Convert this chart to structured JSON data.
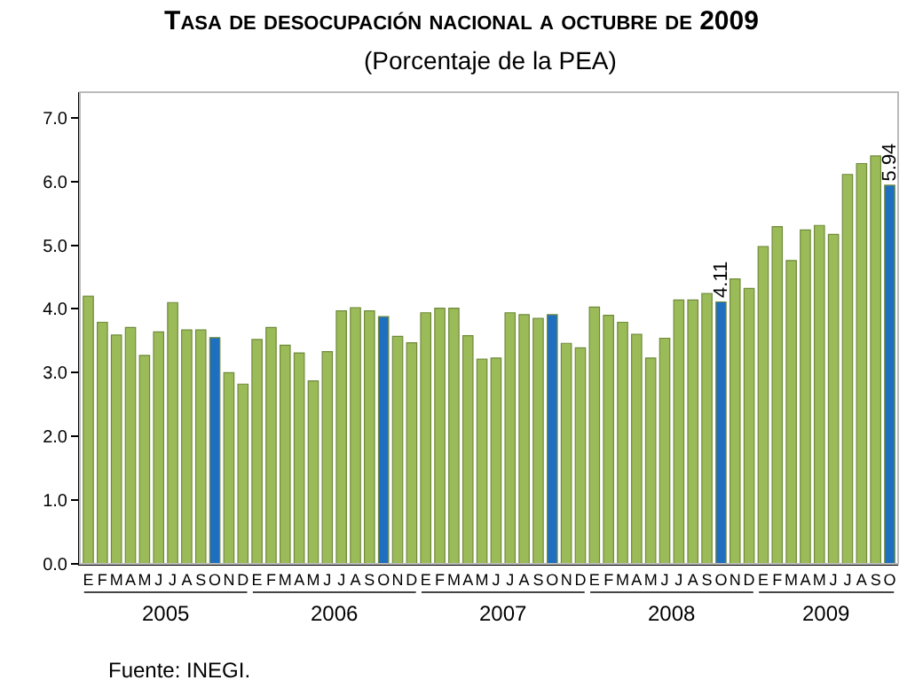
{
  "chart_data": {
    "type": "bar",
    "title": "Tasa de desocupación nacional a octubre de 2009",
    "subtitle": "(Porcentaje de la PEA)",
    "categories": [
      "E",
      "F",
      "M",
      "A",
      "M",
      "J",
      "J",
      "A",
      "S",
      "O",
      "N",
      "D",
      "E",
      "F",
      "M",
      "A",
      "M",
      "J",
      "J",
      "A",
      "S",
      "O",
      "N",
      "D",
      "E",
      "F",
      "M",
      "A",
      "M",
      "J",
      "J",
      "A",
      "S",
      "O",
      "N",
      "D",
      "E",
      "F",
      "M",
      "A",
      "M",
      "J",
      "J",
      "A",
      "S",
      "O",
      "N",
      "D",
      "E",
      "F",
      "M",
      "A",
      "M",
      "J",
      "J",
      "A",
      "S",
      "O"
    ],
    "values": [
      4.2,
      3.79,
      3.59,
      3.71,
      3.27,
      3.64,
      4.1,
      3.67,
      3.67,
      3.55,
      3.0,
      2.82,
      3.52,
      3.71,
      3.43,
      3.31,
      2.87,
      3.33,
      3.97,
      4.02,
      3.97,
      3.88,
      3.57,
      3.47,
      3.94,
      4.01,
      4.01,
      3.58,
      3.21,
      3.23,
      3.94,
      3.91,
      3.85,
      3.91,
      3.46,
      3.39,
      4.03,
      3.9,
      3.79,
      3.6,
      3.23,
      3.54,
      4.14,
      4.14,
      4.24,
      4.11,
      4.47,
      4.32,
      4.98,
      5.29,
      4.76,
      5.24,
      5.31,
      5.17,
      6.11,
      6.28,
      6.4,
      5.94
    ],
    "colors": [
      "#9bbb59",
      "#9bbb59",
      "#9bbb59",
      "#9bbb59",
      "#9bbb59",
      "#9bbb59",
      "#9bbb59",
      "#9bbb59",
      "#9bbb59",
      "#1f6fc0",
      "#9bbb59",
      "#9bbb59",
      "#9bbb59",
      "#9bbb59",
      "#9bbb59",
      "#9bbb59",
      "#9bbb59",
      "#9bbb59",
      "#9bbb59",
      "#9bbb59",
      "#9bbb59",
      "#1f6fc0",
      "#9bbb59",
      "#9bbb59",
      "#9bbb59",
      "#9bbb59",
      "#9bbb59",
      "#9bbb59",
      "#9bbb59",
      "#9bbb59",
      "#9bbb59",
      "#9bbb59",
      "#9bbb59",
      "#1f6fc0",
      "#9bbb59",
      "#9bbb59",
      "#9bbb59",
      "#9bbb59",
      "#9bbb59",
      "#9bbb59",
      "#9bbb59",
      "#9bbb59",
      "#9bbb59",
      "#9bbb59",
      "#9bbb59",
      "#1f6fc0",
      "#9bbb59",
      "#9bbb59",
      "#9bbb59",
      "#9bbb59",
      "#9bbb59",
      "#9bbb59",
      "#9bbb59",
      "#9bbb59",
      "#9bbb59",
      "#9bbb59",
      "#9bbb59",
      "#1f6fc0"
    ],
    "value_labels": [
      null,
      null,
      null,
      null,
      null,
      null,
      null,
      null,
      null,
      null,
      null,
      null,
      null,
      null,
      null,
      null,
      null,
      null,
      null,
      null,
      null,
      null,
      null,
      null,
      null,
      null,
      null,
      null,
      null,
      null,
      null,
      null,
      null,
      null,
      null,
      null,
      null,
      null,
      null,
      null,
      null,
      null,
      null,
      null,
      null,
      "4.11",
      null,
      null,
      null,
      null,
      null,
      null,
      null,
      null,
      null,
      null,
      null,
      "5.94"
    ],
    "ylim": [
      0,
      7.4
    ],
    "yticks": [
      {
        "value": 0,
        "label": "0.0"
      },
      {
        "value": 1,
        "label": "1.0"
      },
      {
        "value": 2,
        "label": "2.0"
      },
      {
        "value": 3,
        "label": "3.0"
      },
      {
        "value": 4,
        "label": "4.0"
      },
      {
        "value": 5,
        "label": "5.0"
      },
      {
        "value": 6,
        "label": "6.0"
      },
      {
        "value": 7,
        "label": "7.0"
      }
    ],
    "annotations": [
      "2005",
      "2006",
      "2007",
      "2008",
      "2009",
      "Fuente: INEGI."
    ],
    "grid": false
  }
}
